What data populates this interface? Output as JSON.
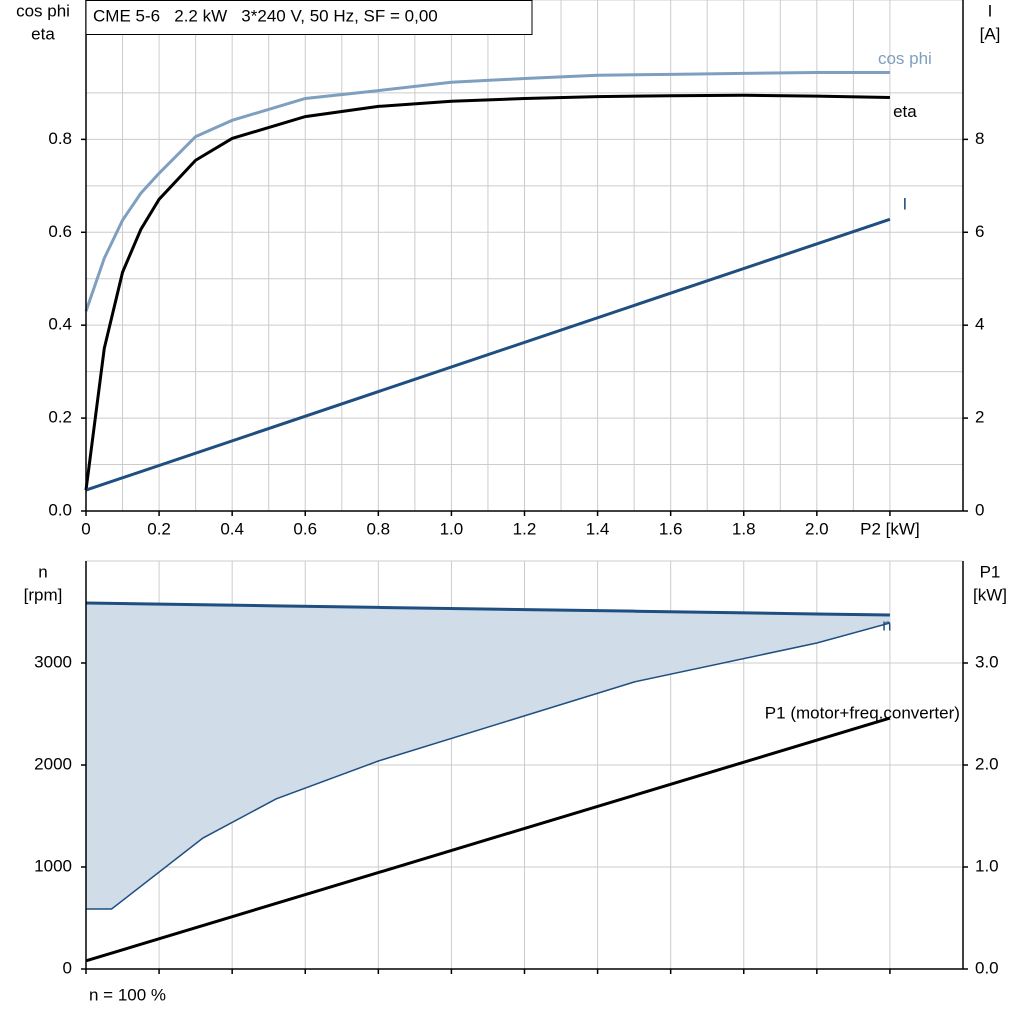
{
  "chart_data": [
    {
      "type": "line",
      "title": "CME 5-6   2.2 kW   3*240 V, 50 Hz, SF = 0,00",
      "ylabel": [
        "cos phi",
        "eta"
      ],
      "y2label": [
        "I",
        "[A]"
      ],
      "xlim": [
        0,
        2.4
      ],
      "xticks": [
        0,
        0.2,
        0.4,
        0.6,
        0.8,
        {
          "value": 1,
          "label": "1.0"
        },
        1.2,
        1.4,
        1.6,
        1.8,
        {
          "value": 2,
          "label": "2.0"
        },
        {
          "value": 2.2,
          "label": "P2 [kW]"
        }
      ],
      "ylim": [
        0,
        1.1
      ],
      "yticks": [
        {
          "value": 0,
          "label": "0.0"
        },
        0.2,
        0.4,
        0.6,
        0.8
      ],
      "y2lim": [
        0,
        11
      ],
      "y2ticks": [
        0,
        2,
        4,
        6,
        8
      ],
      "grid": true,
      "minor_grid": true,
      "xaxis_labels": true,
      "series": [
        {
          "name": "cos phi",
          "color": "#7f9fbf",
          "axis": "y",
          "x": [
            0,
            0.05,
            0.1,
            0.15,
            0.2,
            0.3,
            0.4,
            0.6,
            0.8,
            1.0,
            1.2,
            1.4,
            1.6,
            1.8,
            2.0,
            2.2
          ],
          "values": [
            0.43,
            0.544,
            0.626,
            0.684,
            0.727,
            0.806,
            0.841,
            0.888,
            0.905,
            0.923,
            0.931,
            0.938,
            0.94,
            0.942,
            0.944,
            0.944
          ]
        },
        {
          "name": "eta",
          "color": "#000000",
          "axis": "y",
          "x": [
            0,
            0.05,
            0.1,
            0.15,
            0.2,
            0.3,
            0.4,
            0.6,
            0.8,
            1.0,
            1.2,
            1.4,
            1.6,
            1.8,
            2.0,
            2.2
          ],
          "values": [
            0.045,
            0.35,
            0.514,
            0.606,
            0.671,
            0.755,
            0.802,
            0.849,
            0.871,
            0.882,
            0.888,
            0.892,
            0.894,
            0.895,
            0.893,
            0.89
          ]
        },
        {
          "name": "I",
          "color": "#1f4e80",
          "axis": "y2",
          "x": [
            0,
            2.2
          ],
          "values": [
            0.45,
            6.28
          ]
        }
      ]
    },
    {
      "type": "line",
      "ylabel": [
        "n",
        "[rpm]"
      ],
      "y2label": [
        "P1",
        "[kW]"
      ],
      "note": "n = 100 %",
      "xlim": [
        0,
        2.4
      ],
      "xticks": [
        0,
        0.2,
        0.4,
        0.6,
        0.8,
        1,
        1.2,
        1.4,
        1.6,
        1.8,
        2,
        2.2
      ],
      "ylim": [
        0,
        4000
      ],
      "yticks": [
        0,
        1000,
        2000,
        3000
      ],
      "y2lim": [
        0,
        4
      ],
      "y2ticks": [
        {
          "value": 0,
          "label": "0.0"
        },
        {
          "value": 1,
          "label": "1.0"
        },
        {
          "value": 2,
          "label": "2.0"
        },
        {
          "value": 3,
          "label": "3.0"
        }
      ],
      "grid": true,
      "minor_grid": false,
      "xaxis_labels": false,
      "series": [
        {
          "name": "n",
          "color": "#1f4e80",
          "fill": "#d0dce8",
          "axis": "y",
          "x": [
            0,
            0.07,
            0.32,
            0.52,
            0.8,
            1.5,
            2.0,
            2.2
          ],
          "values": [
            3588,
            3584,
            3571,
            3560,
            3545,
            3508,
            3481,
            3470
          ],
          "lower": [
            588,
            588,
            1284,
            1667,
            2039,
            2814,
            3196,
            3392
          ]
        },
        {
          "name": "P1 (motor+freq.converter)",
          "color": "#000000",
          "axis": "y2",
          "x": [
            0,
            2.2
          ],
          "values": [
            0.08,
            2.46
          ]
        }
      ]
    }
  ]
}
